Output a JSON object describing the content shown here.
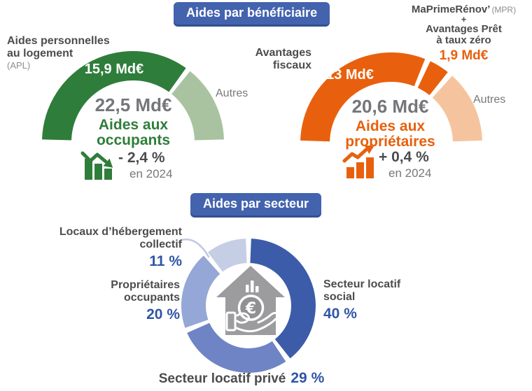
{
  "badges": {
    "beneficiaire": "Aides par bénéficiaire",
    "secteur": "Aides par secteur"
  },
  "colors": {
    "green_dark": "#2f7d3a",
    "green_light": "#a9c3a1",
    "orange": "#e8600d",
    "orange_light": "#f5c49e",
    "blue_badge": "#4363ae",
    "blue_dark": "#3c5caa",
    "blue_medium": "#6e84c5",
    "blue_light": "#94a7d6",
    "blue_pale": "#c6cee5",
    "text_dark": "#4c4c4e",
    "text_gray": "#77787b",
    "pct_blue": "#2f55a6"
  },
  "charts": {
    "occupants": {
      "apl_label_1": "Aides personnelles",
      "apl_label_2": "au logement",
      "apl_sub": "(APL)",
      "apl_value": "15,9 Md€",
      "autres": "Autres",
      "total": "22,5 Md€",
      "center_1": "Aides aux",
      "center_2": "occupants",
      "trend_value": "- 2,4 %",
      "trend_period": "en 2024"
    },
    "proprietaires": {
      "fiscaux_1": "Avantages",
      "fiscaux_2": "fiscaux",
      "fiscaux_value": "13 Md€",
      "mpr_bold": "MaPrimeRénov’",
      "mpr_paren": "(MPR)",
      "mpr_plus": "+",
      "mpr_line2": "Avantages Prêt",
      "mpr_line3": "à taux zéro",
      "mpr_value": "1,9 Md€",
      "autres": "Autres",
      "total": "20,6 Md€",
      "center_1": "Aides aux",
      "center_2": "propriétaires",
      "trend_value": "+ 0,4 %",
      "trend_period": "en 2024"
    },
    "secteur": {
      "social_1": "Secteur locatif",
      "social_2": "social",
      "social_pct": "40 %",
      "prive_label": "Secteur locatif privé",
      "prive_pct": "29 %",
      "occupants_1": "Propriétaires",
      "occupants_2": "occupants",
      "occupants_pct": "20 %",
      "collectif_1": "Locaux d’hébergement",
      "collectif_2": "collectif",
      "collectif_pct": "11 %"
    }
  },
  "chart_data": [
    {
      "type": "pie",
      "variant": "semi-donut",
      "title": "Aides aux occupants",
      "total_label": "22,5 Md€",
      "total_value_mdeur": 22.5,
      "trend": {
        "value_pct": -2.4,
        "label": "- 2,4 %",
        "period": "en 2024",
        "direction": "down"
      },
      "segments": [
        {
          "id": "apl",
          "label": "Aides personnelles au logement (APL)",
          "value": 15.9,
          "value_label": "15,9 Md€",
          "color": "#2f7d3a"
        },
        {
          "id": "autres",
          "label": "Autres",
          "value": 6.6,
          "color": "#a9c3a1"
        }
      ]
    },
    {
      "type": "pie",
      "variant": "semi-donut",
      "title": "Aides aux propriétaires",
      "total_label": "20,6 Md€",
      "total_value_mdeur": 20.6,
      "trend": {
        "value_pct": 0.4,
        "label": "+ 0,4 %",
        "period": "en 2024",
        "direction": "up"
      },
      "segments": [
        {
          "id": "fiscaux",
          "label": "Avantages fiscaux",
          "value": 13,
          "value_label": "13 Md€",
          "color": "#e8600d"
        },
        {
          "id": "mpr-ptz",
          "label": "MaPrimeRénov’ (MPR) + Avantages Prêt à taux zéro",
          "value": 1.9,
          "value_label": "1,9 Md€",
          "color": "#e8600d"
        },
        {
          "id": "autres",
          "label": "Autres",
          "value": 5.7,
          "color": "#f5c49e"
        }
      ]
    },
    {
      "type": "pie",
      "variant": "donut",
      "title": "Aides par secteur",
      "unit": "%",
      "segments": [
        {
          "id": "social",
          "label": "Secteur locatif social",
          "value": 40,
          "color": "#3c5caa"
        },
        {
          "id": "prive",
          "label": "Secteur locatif privé",
          "value": 29,
          "color": "#6e84c5"
        },
        {
          "id": "occupants",
          "label": "Propriétaires occupants",
          "value": 20,
          "color": "#94a7d6"
        },
        {
          "id": "collectif",
          "label": "Locaux d’hébergement collectif",
          "value": 11,
          "color": "#c6cee5"
        }
      ]
    }
  ]
}
